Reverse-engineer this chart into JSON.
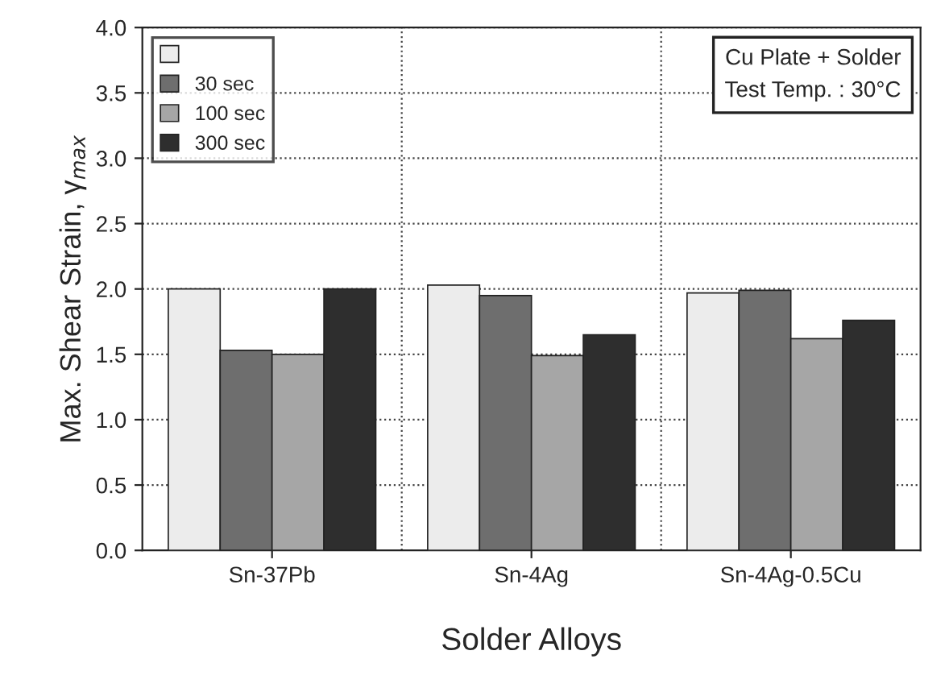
{
  "chart_data": {
    "type": "bar",
    "xlabel": "Solder Alloys",
    "ylabel": "Max. Shear Strain, γ$_{max}$",
    "categories": [
      "Sn-37Pb",
      "Sn-4Ag",
      "Sn-4Ag-0.5Cu"
    ],
    "series": [
      {
        "color": "#ececec",
        "values": [
          2.0,
          2.03,
          1.97
        ]
      },
      {
        "name": "30 sec",
        "color": "#6e6e6e",
        "values": [
          1.53,
          1.95,
          1.99
        ]
      },
      {
        "name": "100 sec",
        "color": "#a6a6a6",
        "values": [
          1.5,
          1.49,
          1.62
        ]
      },
      {
        "name": "300 sec",
        "color": "#2e2e2e",
        "values": [
          2.0,
          1.65,
          1.76
        ]
      }
    ],
    "ylim": [
      0,
      4.0
    ],
    "yticks": [
      {
        "value": 0,
        "label": "0.0"
      },
      {
        "value": 0.5,
        "label": "0.5"
      },
      {
        "value": 1.0,
        "label": "1.0"
      },
      {
        "value": 1.5,
        "label": "1.5"
      },
      {
        "value": 2.0,
        "label": "2.0"
      },
      {
        "value": 2.5,
        "label": "2.5"
      },
      {
        "value": 3.0,
        "label": "3.0"
      },
      {
        "value": 3.5,
        "label": "3.5"
      },
      {
        "value": 4.0,
        "label": "4.0"
      }
    ],
    "grid": true,
    "legend": "top left",
    "annotations": [
      "Cu Plate + Solder\nTest Temp. : 30°C"
    ]
  }
}
